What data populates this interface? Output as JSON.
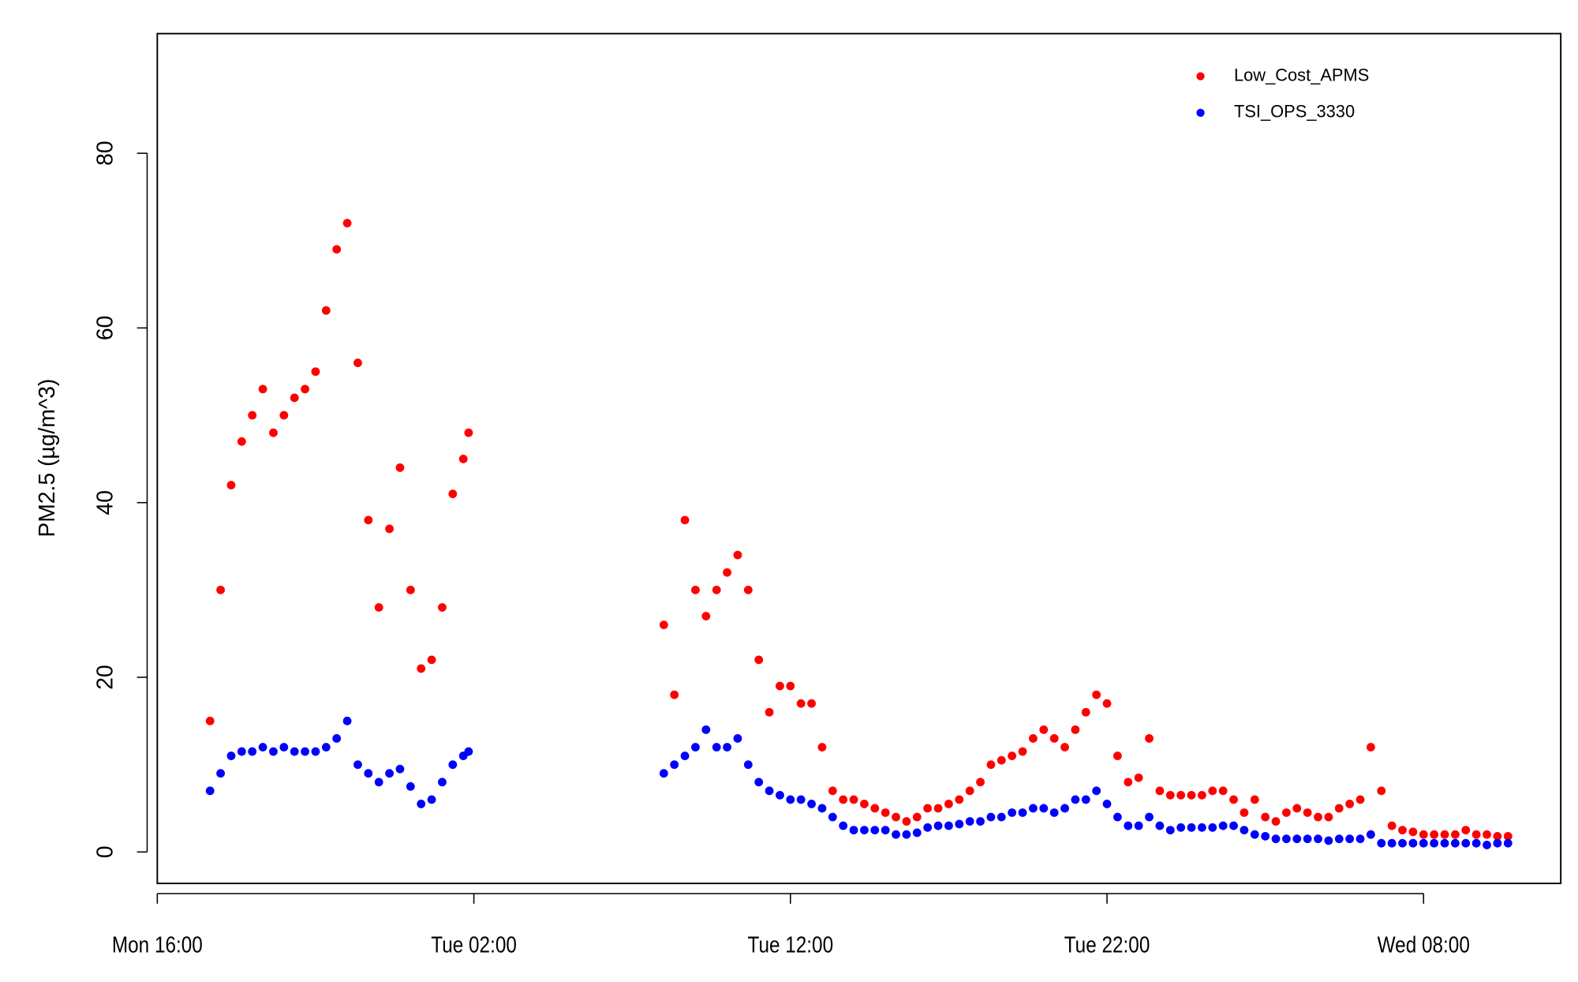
{
  "chart_data": {
    "type": "scatter",
    "y_label": "PM2.5 (µg/m^3)",
    "x": [
      "Mon 17:40",
      "Mon 18:00",
      "Mon 18:20",
      "Mon 18:40",
      "Mon 19:00",
      "Mon 19:20",
      "Mon 19:40",
      "Mon 20:00",
      "Mon 20:20",
      "Mon 20:40",
      "Mon 21:00",
      "Mon 21:20",
      "Mon 21:40",
      "Mon 22:00",
      "Mon 22:20",
      "Mon 22:40",
      "Mon 23:00",
      "Mon 23:20",
      "Mon 23:40",
      "Tue 00:00",
      "Tue 00:20",
      "Tue 00:40",
      "Tue 01:00",
      "Tue 01:20",
      "Tue 01:40",
      "Tue 01:50",
      "Tue 08:00",
      "Tue 08:20",
      "Tue 08:40",
      "Tue 09:00",
      "Tue 09:20",
      "Tue 09:40",
      "Tue 10:00",
      "Tue 10:20",
      "Tue 10:40",
      "Tue 11:00",
      "Tue 11:20",
      "Tue 11:40",
      "Tue 12:00",
      "Tue 12:20",
      "Tue 12:40",
      "Tue 13:00",
      "Tue 13:20",
      "Tue 13:40",
      "Tue 14:00",
      "Tue 14:20",
      "Tue 14:40",
      "Tue 15:00",
      "Tue 15:20",
      "Tue 15:40",
      "Tue 16:00",
      "Tue 16:20",
      "Tue 16:40",
      "Tue 17:00",
      "Tue 17:20",
      "Tue 17:40",
      "Tue 18:00",
      "Tue 18:20",
      "Tue 18:40",
      "Tue 19:00",
      "Tue 19:20",
      "Tue 19:40",
      "Tue 20:00",
      "Tue 20:20",
      "Tue 20:40",
      "Tue 21:00",
      "Tue 21:20",
      "Tue 21:40",
      "Tue 22:00",
      "Tue 22:20",
      "Tue 22:40",
      "Tue 23:00",
      "Tue 23:20",
      "Tue 23:40",
      "Wed 00:00",
      "Wed 00:20",
      "Wed 00:40",
      "Wed 01:00",
      "Wed 01:20",
      "Wed 01:40",
      "Wed 02:00",
      "Wed 02:20",
      "Wed 02:40",
      "Wed 03:00",
      "Wed 03:20",
      "Wed 03:40",
      "Wed 04:00",
      "Wed 04:20",
      "Wed 04:40",
      "Wed 05:00",
      "Wed 05:20",
      "Wed 05:40",
      "Wed 06:00",
      "Wed 06:20",
      "Wed 06:40",
      "Wed 07:00",
      "Wed 07:20",
      "Wed 07:40",
      "Wed 08:00",
      "Wed 08:20",
      "Wed 08:40",
      "Wed 09:00",
      "Wed 09:20",
      "Wed 09:40",
      "Wed 10:00",
      "Wed 10:20",
      "Wed 10:40"
    ],
    "series": [
      {
        "name": "Low_Cost_APMS",
        "color": "#ff0000",
        "values": [
          15,
          30,
          42,
          47,
          50,
          53,
          48,
          50,
          52,
          53,
          55,
          62,
          69,
          72,
          56,
          38,
          28,
          37,
          44,
          30,
          21,
          22,
          28,
          41,
          45,
          48,
          26,
          18,
          38,
          30,
          27,
          30,
          32,
          34,
          30,
          22,
          16,
          19,
          19,
          17,
          17,
          12,
          7,
          6,
          6,
          5.5,
          5,
          4.5,
          4,
          3.5,
          4,
          5,
          5,
          5.5,
          6,
          7,
          8,
          10,
          10.5,
          11,
          11.5,
          13,
          14,
          13,
          12,
          14,
          16,
          18,
          17,
          11,
          8,
          8.5,
          13,
          7,
          6.5,
          6.5,
          6.5,
          6.5,
          7,
          7,
          6,
          4.5,
          6,
          4,
          3.5,
          4.5,
          5,
          4.5,
          4,
          4,
          5,
          5.5,
          6,
          12,
          7,
          3,
          2.5,
          2.3,
          2,
          2,
          2,
          2,
          2.5,
          2,
          2,
          1.8,
          1.8
        ]
      },
      {
        "name": "TSI_OPS_3330",
        "color": "#0000ff",
        "values": [
          7,
          9,
          11,
          11.5,
          11.5,
          12,
          11.5,
          12,
          11.5,
          11.5,
          11.5,
          12,
          13,
          15,
          10,
          9,
          8,
          9,
          9.5,
          7.5,
          5.5,
          6,
          8,
          10,
          11,
          11.5,
          9,
          10,
          11,
          12,
          14,
          12,
          12,
          13,
          10,
          8,
          7,
          6.5,
          6,
          6,
          5.5,
          5,
          4,
          3,
          2.5,
          2.5,
          2.5,
          2.5,
          2,
          2,
          2.2,
          2.8,
          3,
          3,
          3.2,
          3.5,
          3.5,
          4,
          4,
          4.5,
          4.5,
          5,
          5,
          4.5,
          5,
          6,
          6,
          7,
          5.5,
          4,
          3,
          3,
          4,
          3,
          2.5,
          2.8,
          2.8,
          2.8,
          2.8,
          3,
          3,
          2.5,
          2,
          1.8,
          1.5,
          1.5,
          1.5,
          1.5,
          1.5,
          1.3,
          1.5,
          1.5,
          1.5,
          2,
          1,
          1,
          1,
          1,
          1,
          1,
          1,
          1,
          1,
          1,
          0.8,
          1,
          1
        ]
      }
    ],
    "xlim": [
      "Mon 16:00",
      "Wed 12:20"
    ],
    "xticks": [
      "Mon 16:00",
      "Tue 02:00",
      "Tue 12:00",
      "Tue 22:00",
      "Wed 08:00"
    ],
    "ylim": [
      -3.6,
      93.7
    ],
    "yticks": [
      0,
      20,
      40,
      60,
      80
    ],
    "legend": "topright"
  }
}
